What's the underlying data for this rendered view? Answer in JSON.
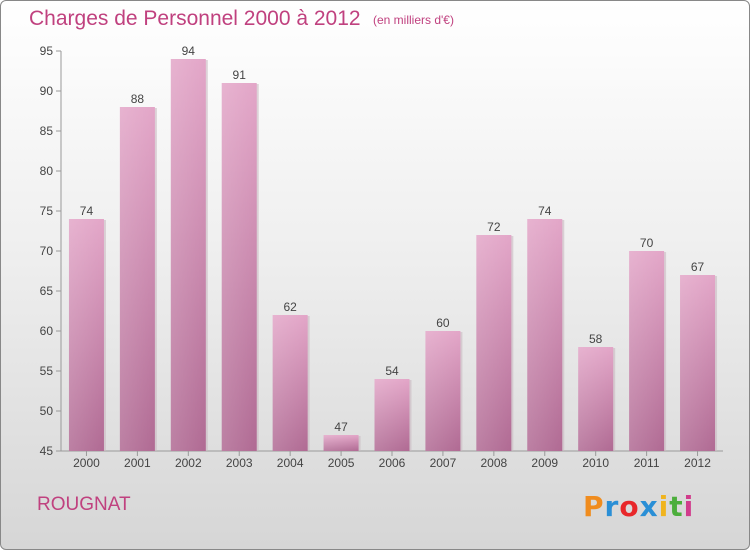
{
  "header": {
    "title": "Charges de Personnel 2000 à 2012",
    "subtitle": "(en milliers d'€)"
  },
  "footer": {
    "commune": "ROUGNAT",
    "logo_text": "Proxiti",
    "logo_colors": [
      "#f08c1e",
      "#2a8fd6",
      "#e8272a",
      "#2a8fd6",
      "#f0b41e",
      "#4cae3c",
      "#d13c8c"
    ]
  },
  "colors": {
    "bar": "#d48ab0",
    "bar_dark": "#b4648f",
    "accent": "#c0417f",
    "axis": "#888888"
  },
  "chart_data": {
    "type": "bar",
    "title": "Charges de Personnel 2000 à 2012",
    "subtitle": "(en milliers d'€)",
    "categories": [
      "2000",
      "2001",
      "2002",
      "2003",
      "2004",
      "2005",
      "2006",
      "2007",
      "2008",
      "2009",
      "2010",
      "2011",
      "2012"
    ],
    "values": [
      74,
      88,
      94,
      91,
      62,
      47,
      54,
      60,
      72,
      74,
      58,
      70,
      67
    ],
    "ylim": [
      45,
      95
    ],
    "yticks": [
      45,
      50,
      55,
      60,
      65,
      70,
      75,
      80,
      85,
      90,
      95
    ],
    "xlabel": "",
    "ylabel": "",
    "grid": false,
    "data_labels": true
  }
}
